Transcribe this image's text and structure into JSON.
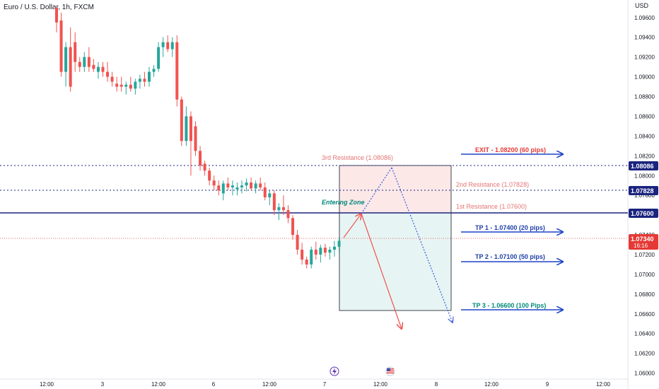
{
  "header": {
    "symbol_title": "Euro / U.S. Dollar, 1h, FXCM"
  },
  "price_axis": {
    "currency": "USD",
    "ticks": [
      "1.06000",
      "1.06200",
      "1.06400",
      "1.06600",
      "1.06800",
      "1.07000",
      "1.07200",
      "1.07400",
      "1.07600",
      "1.07800",
      "1.08000",
      "1.08200",
      "1.08400",
      "1.08600",
      "1.08800",
      "1.09000",
      "1.09200",
      "1.09400",
      "1.09600"
    ]
  },
  "time_axis": {
    "ticks": [
      "12:00",
      "3",
      "12:00",
      "6",
      "12:00",
      "7",
      "12:00",
      "8",
      "12:00",
      "9",
      "12:00"
    ]
  },
  "price_tags": {
    "third_resistance": "1.08086",
    "second_resistance": "1.07828",
    "first_resistance": "1.07600",
    "current_price": "1.07340",
    "countdown": "16:16"
  },
  "annotations": {
    "exit": "EXIT - 1.08200 (60 pips)",
    "tp1": "TP 1 - 1.07400 (20 pips)",
    "tp2": "TP 2 - 1.07100 (50 pips)",
    "tp3": "TP 3 - 1.06600 (100 Pips)",
    "third_resistance": "3rd Resistance (1.08086)",
    "second_resistance": "2nd Resistance (1.07828)",
    "first_resistance": "1st Resistance (1.07600)",
    "entering_zone": "Entering Zone"
  },
  "colors": {
    "bull": "#26a69a",
    "bear": "#ef5350",
    "level_line": "#1a237e",
    "arrow_blue": "#1e44c8",
    "current_tag": "#e53935",
    "exit_text": "#e53935",
    "tp_text": "#1e3fa8",
    "tp3_text": "#00897b",
    "resistance_text": "#e57373",
    "red_zone": "#fde8e8",
    "green_zone": "#e6f5f4",
    "forecast_red": "#ef5350",
    "forecast_blue": "#3b5bdb"
  },
  "icons": {
    "lightning": "lightning-event-icon",
    "us_flag": "us-flag-event-icon"
  },
  "chart_data": {
    "type": "candlestick",
    "title": "Euro / U.S. Dollar, 1h, FXCM",
    "y_unit": "USD",
    "ylim": [
      1.0594,
      1.0972
    ],
    "levels": [
      {
        "name": "3rd Resistance",
        "value": 1.08086
      },
      {
        "name": "2nd Resistance",
        "value": 1.07828
      },
      {
        "name": "1st Resistance",
        "value": 1.076
      },
      {
        "name": "EXIT",
        "value": 1.082
      },
      {
        "name": "TP 1",
        "value": 1.074
      },
      {
        "name": "TP 2",
        "value": 1.071
      },
      {
        "name": "TP 3",
        "value": 1.066
      },
      {
        "name": "Current",
        "value": 1.0734
      }
    ],
    "candles": [
      [
        1.097,
        1.097,
        1.0945,
        1.0955
      ],
      [
        1.0957,
        1.0965,
        1.09,
        1.0905
      ],
      [
        1.0905,
        1.0935,
        1.089,
        1.093
      ],
      [
        1.093,
        1.095,
        1.0885,
        1.089
      ],
      [
        1.0935,
        1.0945,
        1.0905,
        1.0915
      ],
      [
        1.0915,
        1.092,
        1.0905,
        1.091
      ],
      [
        1.091,
        1.0925,
        1.0905,
        1.092
      ],
      [
        1.092,
        1.093,
        1.0905,
        1.091
      ],
      [
        1.0912,
        1.0918,
        1.0905,
        1.0908
      ],
      [
        1.0905,
        1.0915,
        1.0898,
        1.091
      ],
      [
        1.091,
        1.0915,
        1.09,
        1.0905
      ],
      [
        1.0905,
        1.0915,
        1.0895,
        1.09
      ],
      [
        1.09,
        1.0905,
        1.089,
        1.0895
      ],
      [
        1.0893,
        1.09,
        1.0885,
        1.089
      ],
      [
        1.0892,
        1.09,
        1.0885,
        1.089
      ],
      [
        1.089,
        1.0895,
        1.0882,
        1.0892
      ],
      [
        1.0892,
        1.09,
        1.0885,
        1.0888
      ],
      [
        1.0888,
        1.0898,
        1.0882,
        1.0895
      ],
      [
        1.0895,
        1.0902,
        1.0888,
        1.0898
      ],
      [
        1.0898,
        1.0905,
        1.089,
        1.0895
      ],
      [
        1.0895,
        1.091,
        1.089,
        1.0905
      ],
      [
        1.0905,
        1.0912,
        1.09,
        1.0908
      ],
      [
        1.0908,
        1.0935,
        1.0905,
        1.093
      ],
      [
        1.093,
        1.094,
        1.092,
        1.0935
      ],
      [
        1.0935,
        1.0942,
        1.0925,
        1.0928
      ],
      [
        1.0928,
        1.094,
        1.092,
        1.0935
      ],
      [
        1.0935,
        1.0942,
        1.087,
        1.0877
      ],
      [
        1.0877,
        1.088,
        1.083,
        1.0835
      ],
      [
        1.0835,
        1.087,
        1.083,
        1.086
      ],
      [
        1.086,
        1.0865,
        1.08,
        1.0835
      ],
      [
        1.085,
        1.0855,
        1.082,
        1.0825
      ],
      [
        1.0825,
        1.083,
        1.0805,
        1.081
      ],
      [
        1.0812,
        1.0815,
        1.08,
        1.0805
      ],
      [
        1.0805,
        1.0808,
        1.079,
        1.0795
      ],
      [
        1.0795,
        1.08,
        1.0785,
        1.079
      ],
      [
        1.079,
        1.0795,
        1.078,
        1.0785
      ],
      [
        1.0782,
        1.0795,
        1.0775,
        1.0792
      ],
      [
        1.0792,
        1.0798,
        1.0785,
        1.0788
      ],
      [
        1.0788,
        1.0795,
        1.078,
        1.079
      ],
      [
        1.0786,
        1.0793,
        1.078,
        1.0788
      ],
      [
        1.0788,
        1.0795,
        1.0782,
        1.079
      ],
      [
        1.079,
        1.0797,
        1.0784,
        1.0793
      ],
      [
        1.0793,
        1.0798,
        1.0785,
        1.0787
      ],
      [
        1.0787,
        1.0795,
        1.0782,
        1.0792
      ],
      [
        1.0792,
        1.0798,
        1.0785,
        1.0788
      ],
      [
        1.0788,
        1.0793,
        1.0775,
        1.0778
      ],
      [
        1.0778,
        1.0785,
        1.077,
        1.0782
      ],
      [
        1.0782,
        1.0785,
        1.076,
        1.0765
      ],
      [
        1.0765,
        1.0772,
        1.0755,
        1.0768
      ],
      [
        1.0768,
        1.078,
        1.076,
        1.0765
      ],
      [
        1.0765,
        1.077,
        1.0752,
        1.0757
      ],
      [
        1.0757,
        1.076,
        1.0735,
        1.074
      ],
      [
        1.074,
        1.0745,
        1.072,
        1.0725
      ],
      [
        1.0725,
        1.0732,
        1.071,
        1.0715
      ],
      [
        1.0715,
        1.0718,
        1.0706,
        1.071
      ],
      [
        1.071,
        1.0728,
        1.0706,
        1.0725
      ],
      [
        1.0725,
        1.0733,
        1.0715,
        1.072
      ],
      [
        1.072,
        1.073,
        1.0712,
        1.0727
      ],
      [
        1.0727,
        1.0731,
        1.0718,
        1.0722
      ],
      [
        1.0722,
        1.0728,
        1.0715,
        1.0725
      ],
      [
        1.0725,
        1.0734,
        1.0718,
        1.0728
      ],
      [
        1.0728,
        1.0738,
        1.0722,
        1.0734
      ]
    ]
  }
}
